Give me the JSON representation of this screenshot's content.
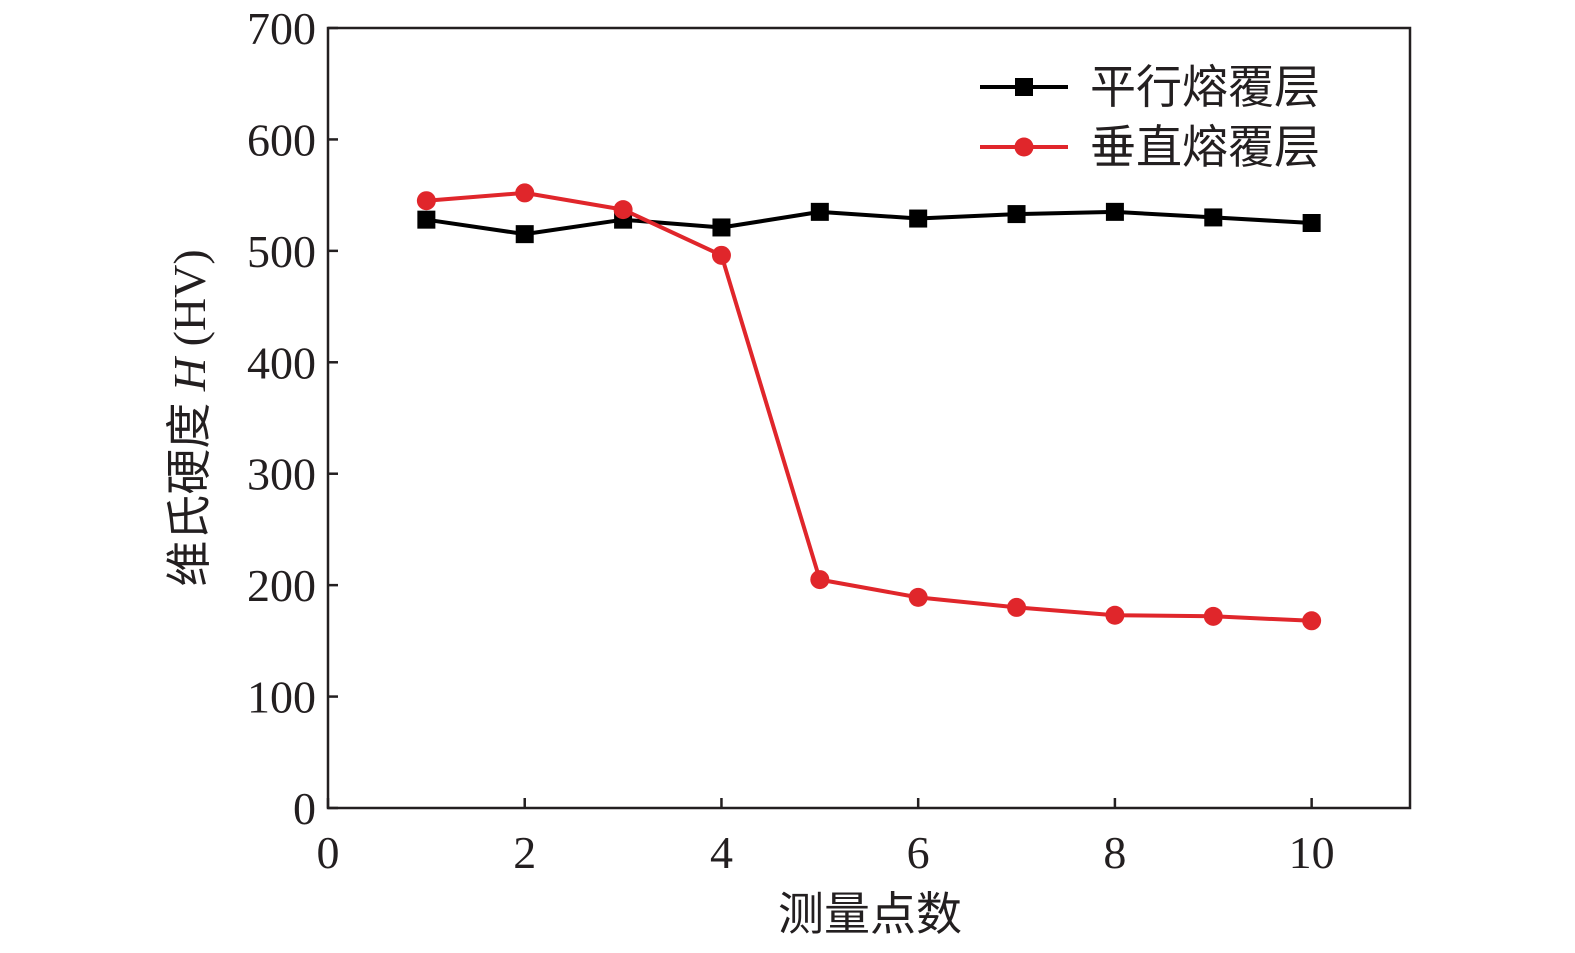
{
  "chart_data": {
    "type": "line",
    "title": "",
    "xlabel": "测量点数",
    "ylabel": {
      "prefix": "维氏硬度 ",
      "variable": "H",
      "unit": " (HV)"
    },
    "xlim": [
      0,
      11
    ],
    "ylim": [
      0,
      700
    ],
    "xticks": [
      0,
      2,
      4,
      6,
      8,
      10
    ],
    "yticks": [
      0,
      100,
      200,
      300,
      400,
      500,
      600,
      700
    ],
    "grid": false,
    "legend_position": "top-right",
    "x": [
      1,
      2,
      3,
      4,
      5,
      6,
      7,
      8,
      9,
      10
    ],
    "series": [
      {
        "name": "平行熔覆层",
        "color": "#000000",
        "marker": "square",
        "values": [
          528,
          515,
          528,
          521,
          535,
          529,
          533,
          535,
          530,
          525
        ]
      },
      {
        "name": "垂直熔覆层",
        "color": "#e0262b",
        "marker": "circle",
        "values": [
          545,
          552,
          537,
          496,
          205,
          189,
          180,
          173,
          172,
          168
        ]
      }
    ]
  }
}
